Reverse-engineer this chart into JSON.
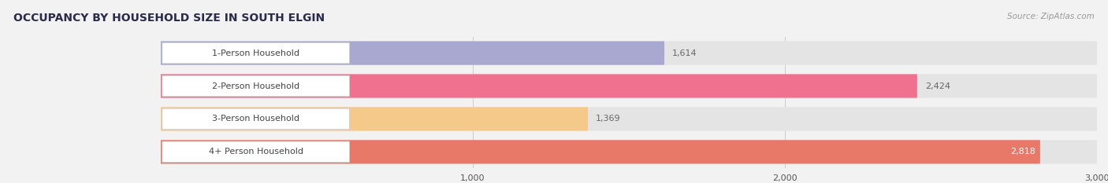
{
  "title": "OCCUPANCY BY HOUSEHOLD SIZE IN SOUTH ELGIN",
  "source": "Source: ZipAtlas.com",
  "categories": [
    "1-Person Household",
    "2-Person Household",
    "3-Person Household",
    "4+ Person Household"
  ],
  "values": [
    1614,
    2424,
    1369,
    2818
  ],
  "bar_colors": [
    "#a8a8d0",
    "#f07090",
    "#f5c98a",
    "#e87868"
  ],
  "bar_label_colors": [
    "#666666",
    "#ffffff",
    "#666666",
    "#ffffff"
  ],
  "value_labels": [
    "1,614",
    "2,424",
    "1,369",
    "2,818"
  ],
  "xlim": [
    0,
    3000
  ],
  "xticks": [
    1000,
    2000,
    3000
  ],
  "xtick_labels": [
    "1,000",
    "2,000",
    "3,000"
  ],
  "background_color": "#f2f2f2",
  "bar_background_color": "#e4e4e4",
  "title_color": "#2a2a4a",
  "source_color": "#999999",
  "category_color": "#444444",
  "grid_color": "#cccccc",
  "title_fontsize": 10,
  "axis_fontsize": 8,
  "bar_label_fontsize": 8,
  "category_fontsize": 8
}
